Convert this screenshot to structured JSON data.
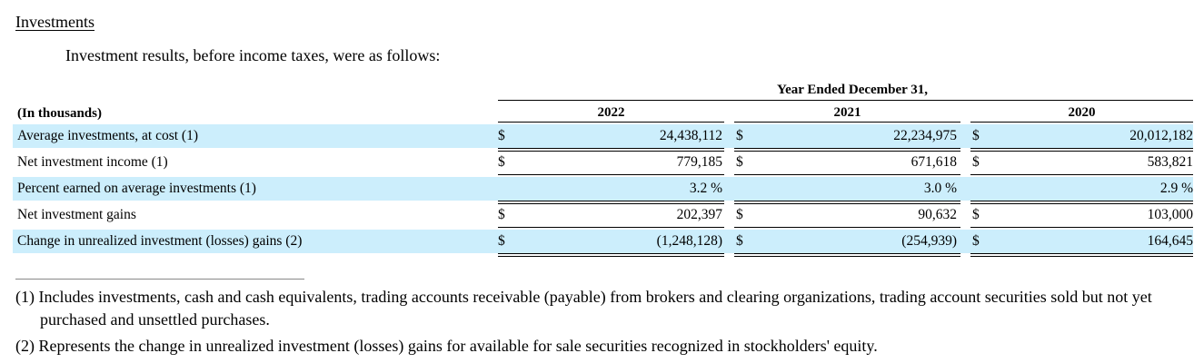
{
  "heading": "Investments",
  "intro": "Investment results, before income taxes, were as follows:",
  "table": {
    "group_header": "Year Ended December 31,",
    "unit_label": "(In thousands)",
    "years": [
      "2022",
      "2021",
      "2020"
    ],
    "currency_symbol": "$",
    "rows": [
      {
        "label": "Average investments, at cost (1)",
        "values": [
          "24,438,112",
          "22,234,975",
          "20,012,182"
        ],
        "dollar": true,
        "shaded": true
      },
      {
        "label": "Net investment income (1)",
        "values": [
          "779,185",
          "671,618",
          "583,821"
        ],
        "dollar": true,
        "shaded": false
      },
      {
        "label": "Percent earned on average investments (1)",
        "values": [
          "3.2 %",
          "3.0 %",
          "2.9 %"
        ],
        "dollar": false,
        "shaded": true
      },
      {
        "label": "Net investment gains",
        "values": [
          "202,397",
          "90,632",
          "103,000"
        ],
        "dollar": true,
        "shaded": false
      },
      {
        "label": "Change in unrealized investment (losses) gains (2)",
        "values": [
          "(1,248,128)",
          "(254,939)",
          "164,645"
        ],
        "dollar": true,
        "shaded": true
      }
    ]
  },
  "footnotes": {
    "fn1_num": "(1)",
    "fn1_text": "Includes investments, cash and cash equivalents, trading accounts receivable (payable) from brokers and clearing organizations, trading account securities sold but not yet purchased and unsettled purchases.",
    "fn2_num": "(2)",
    "fn2_text": "Represents the change in unrealized investment (losses) gains for available for sale securities recognized in stockholders' equity."
  }
}
